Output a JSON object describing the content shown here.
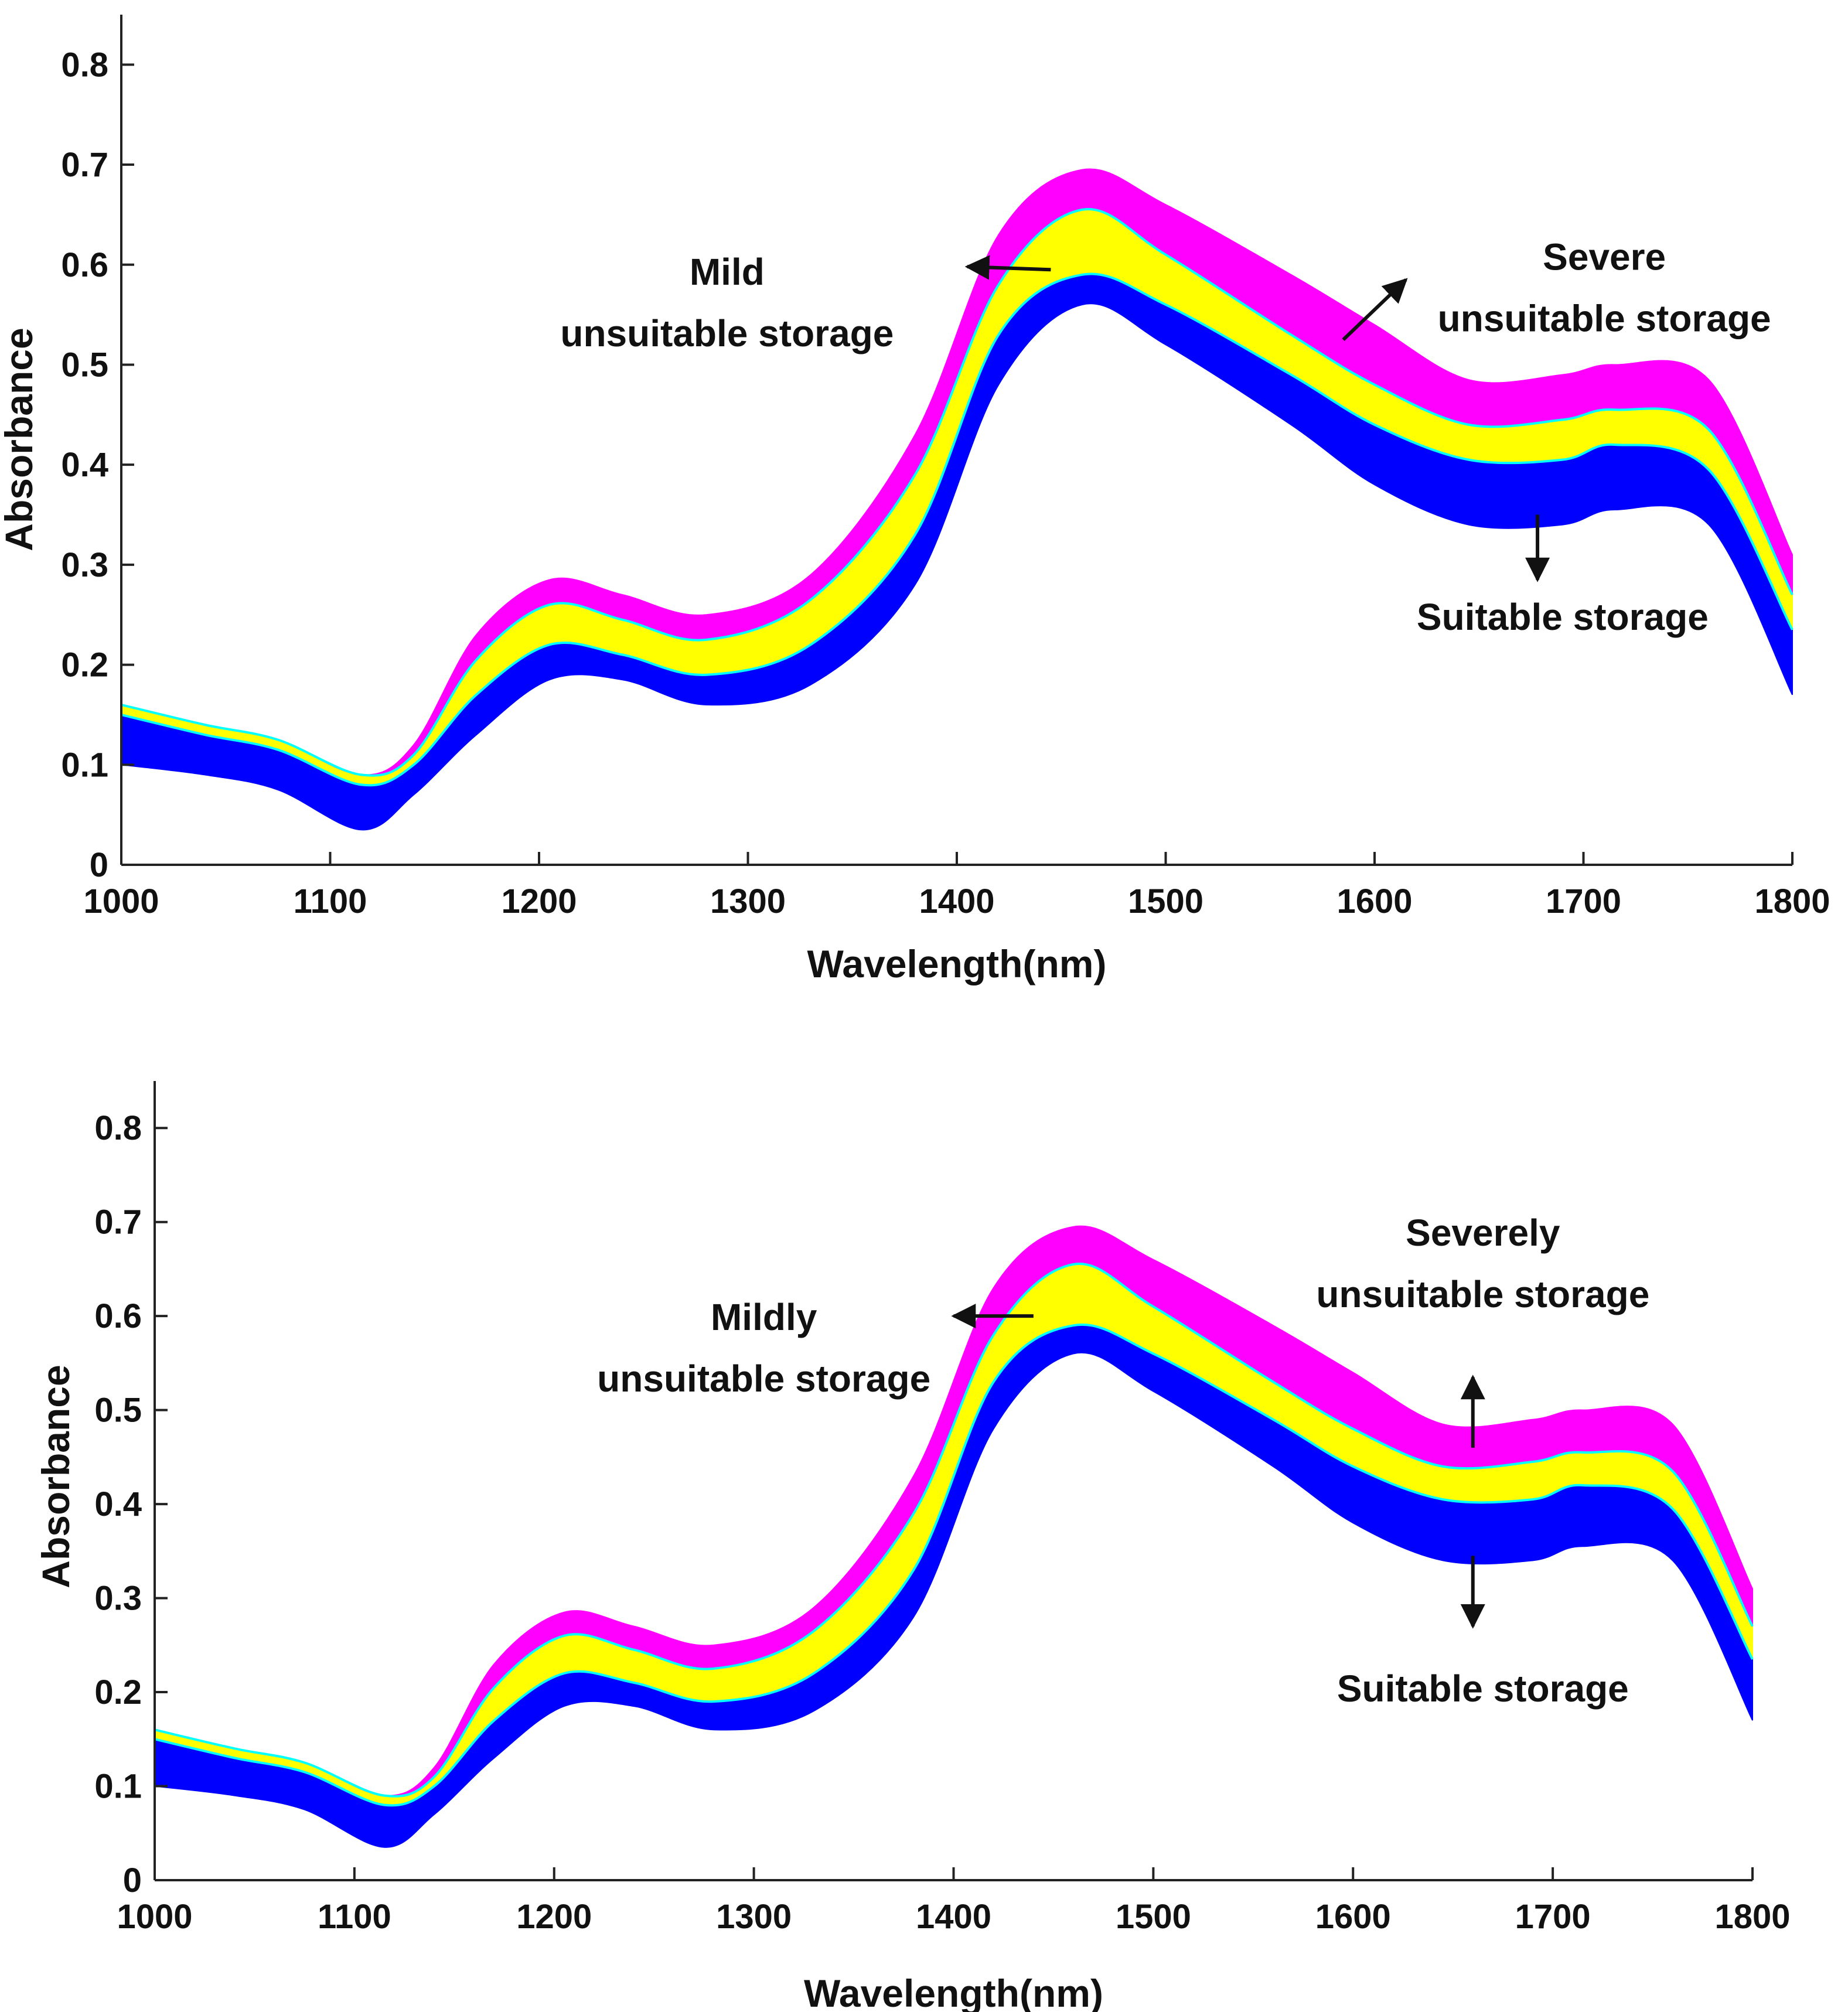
{
  "colors": {
    "suitable": "#0000ff",
    "mild": "#ffff00",
    "severe": "#ff00ff",
    "edge": "#00ffff",
    "axis": "#222222"
  },
  "chart_data": [
    {
      "type": "area",
      "xlabel": "Wavelength(nm)",
      "ylabel": "Absorbance",
      "xlim": [
        1000,
        1800
      ],
      "ylim": [
        0,
        0.85
      ],
      "xticks": [
        "1000",
        "1100",
        "1200",
        "1300",
        "1400",
        "1500",
        "1600",
        "1700",
        "1800"
      ],
      "yticks": [
        "0",
        "0.1",
        "0.2",
        "0.3",
        "0.4",
        "0.5",
        "0.6",
        "0.7",
        "0.8"
      ],
      "x": [
        1000,
        1040,
        1075,
        1115,
        1140,
        1170,
        1205,
        1240,
        1280,
        1330,
        1380,
        1420,
        1460,
        1500,
        1560,
        1600,
        1645,
        1690,
        1715,
        1760,
        1800
      ],
      "series": [
        {
          "name": "Suitable storage",
          "color_key": "suitable",
          "lower": [
            0.1,
            0.09,
            0.075,
            0.035,
            0.07,
            0.13,
            0.185,
            0.185,
            0.16,
            0.18,
            0.28,
            0.48,
            0.56,
            0.52,
            0.44,
            0.38,
            0.34,
            0.34,
            0.355,
            0.34,
            0.17
          ],
          "upper": [
            0.15,
            0.13,
            0.115,
            0.08,
            0.1,
            0.17,
            0.22,
            0.21,
            0.19,
            0.22,
            0.33,
            0.53,
            0.59,
            0.56,
            0.49,
            0.44,
            0.405,
            0.405,
            0.42,
            0.395,
            0.235
          ]
        },
        {
          "name": "Mild unsuitable storage",
          "color_key": "mild",
          "lower": [
            0.15,
            0.13,
            0.115,
            0.08,
            0.1,
            0.17,
            0.22,
            0.21,
            0.19,
            0.22,
            0.33,
            0.53,
            0.59,
            0.56,
            0.49,
            0.44,
            0.405,
            0.405,
            0.42,
            0.395,
            0.235
          ],
          "upper": [
            0.16,
            0.14,
            0.125,
            0.09,
            0.11,
            0.205,
            0.26,
            0.245,
            0.225,
            0.265,
            0.39,
            0.58,
            0.655,
            0.61,
            0.53,
            0.48,
            0.44,
            0.445,
            0.455,
            0.435,
            0.27
          ]
        },
        {
          "name": "Severe unsuitable storage",
          "color_key": "severe",
          "lower": [
            0.16,
            0.14,
            0.125,
            0.09,
            0.11,
            0.205,
            0.26,
            0.245,
            0.225,
            0.265,
            0.39,
            0.58,
            0.655,
            0.61,
            0.53,
            0.48,
            0.44,
            0.445,
            0.455,
            0.435,
            0.27
          ],
          "upper": [
            0.16,
            0.14,
            0.125,
            0.09,
            0.12,
            0.23,
            0.285,
            0.27,
            0.25,
            0.29,
            0.43,
            0.63,
            0.695,
            0.66,
            0.59,
            0.54,
            0.485,
            0.49,
            0.5,
            0.485,
            0.31
          ]
        }
      ],
      "annotations": [
        {
          "key": "mild",
          "lines": [
            "Mild",
            "unsuitable storage"
          ],
          "x": 1290,
          "y": 0.58,
          "arrow_from": [
            1445,
            0.595
          ],
          "arrow_to": [
            1405,
            0.598
          ]
        },
        {
          "key": "severe",
          "lines": [
            "Severe",
            "unsuitable storage"
          ],
          "x": 1710,
          "y": 0.595,
          "arrow_from": [
            1585,
            0.525
          ],
          "arrow_to": [
            1615,
            0.585
          ]
        },
        {
          "key": "suitable",
          "lines": [
            "Suitable storage"
          ],
          "x": 1690,
          "y": 0.235,
          "arrow_from": [
            1678,
            0.35
          ],
          "arrow_to": [
            1678,
            0.285
          ]
        }
      ]
    },
    {
      "type": "area",
      "xlabel": "Wavelength(nm)",
      "ylabel": "Absorbance",
      "xlim": [
        1000,
        1800
      ],
      "ylim": [
        0,
        0.85
      ],
      "xticks": [
        "1000",
        "1100",
        "1200",
        "1300",
        "1400",
        "1500",
        "1600",
        "1700",
        "1800"
      ],
      "yticks": [
        "0",
        "0.1",
        "0.2",
        "0.3",
        "0.4",
        "0.5",
        "0.6",
        "0.7",
        "0.8"
      ],
      "x": [
        1000,
        1040,
        1075,
        1115,
        1140,
        1170,
        1205,
        1240,
        1280,
        1330,
        1380,
        1420,
        1460,
        1500,
        1560,
        1600,
        1645,
        1690,
        1715,
        1760,
        1800
      ],
      "series": [
        {
          "name": "Suitable storage",
          "color_key": "suitable",
          "lower": [
            0.1,
            0.09,
            0.075,
            0.035,
            0.07,
            0.13,
            0.185,
            0.185,
            0.16,
            0.18,
            0.28,
            0.48,
            0.56,
            0.52,
            0.44,
            0.38,
            0.34,
            0.34,
            0.355,
            0.34,
            0.17
          ],
          "upper": [
            0.15,
            0.13,
            0.115,
            0.08,
            0.1,
            0.17,
            0.22,
            0.21,
            0.19,
            0.22,
            0.33,
            0.53,
            0.59,
            0.56,
            0.49,
            0.44,
            0.405,
            0.405,
            0.42,
            0.395,
            0.235
          ]
        },
        {
          "name": "Mildly unsuitable storage",
          "color_key": "mild",
          "lower": [
            0.15,
            0.13,
            0.115,
            0.08,
            0.1,
            0.17,
            0.22,
            0.21,
            0.19,
            0.22,
            0.33,
            0.53,
            0.59,
            0.56,
            0.49,
            0.44,
            0.405,
            0.405,
            0.42,
            0.395,
            0.235
          ],
          "upper": [
            0.16,
            0.14,
            0.125,
            0.09,
            0.11,
            0.205,
            0.26,
            0.245,
            0.225,
            0.265,
            0.39,
            0.58,
            0.655,
            0.61,
            0.53,
            0.48,
            0.44,
            0.445,
            0.455,
            0.435,
            0.27
          ]
        },
        {
          "name": "Severely unsuitable storage",
          "color_key": "severe",
          "lower": [
            0.16,
            0.14,
            0.125,
            0.09,
            0.11,
            0.205,
            0.26,
            0.245,
            0.225,
            0.265,
            0.39,
            0.58,
            0.655,
            0.61,
            0.53,
            0.48,
            0.44,
            0.445,
            0.455,
            0.435,
            0.27
          ],
          "upper": [
            0.16,
            0.14,
            0.125,
            0.09,
            0.12,
            0.23,
            0.285,
            0.27,
            0.25,
            0.29,
            0.43,
            0.63,
            0.695,
            0.66,
            0.59,
            0.54,
            0.485,
            0.49,
            0.5,
            0.485,
            0.31
          ]
        }
      ],
      "annotations": [
        {
          "key": "mild",
          "lines": [
            "Mildly",
            "unsuitable storage"
          ],
          "x": 1305,
          "y": 0.585,
          "arrow_from": [
            1440,
            0.6
          ],
          "arrow_to": [
            1400,
            0.6
          ]
        },
        {
          "key": "severe",
          "lines": [
            "Severely",
            "unsuitable storage"
          ],
          "x": 1665,
          "y": 0.675,
          "arrow_from": [
            1660,
            0.46
          ],
          "arrow_to": [
            1660,
            0.535
          ]
        },
        {
          "key": "suitable",
          "lines": [
            "Suitable storage"
          ],
          "x": 1665,
          "y": 0.19,
          "arrow_from": [
            1660,
            0.345
          ],
          "arrow_to": [
            1660,
            0.27
          ]
        }
      ]
    }
  ]
}
